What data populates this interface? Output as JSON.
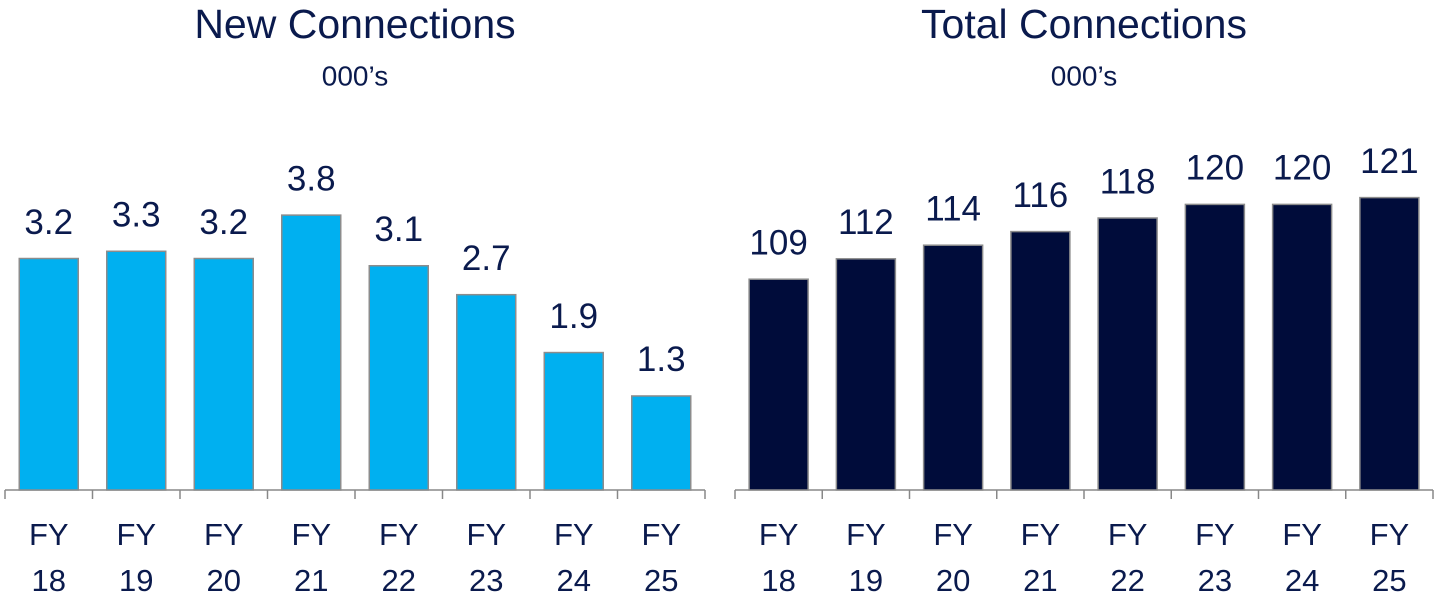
{
  "chart_data": [
    {
      "type": "bar",
      "title": "New Connections",
      "subtitle": "000’s",
      "categories": [
        "FY 18",
        "FY 19",
        "FY 20",
        "FY 21",
        "FY 22",
        "FY 23",
        "FY 24",
        "FY 25"
      ],
      "values": [
        3.2,
        3.3,
        3.2,
        3.8,
        3.1,
        2.7,
        1.9,
        1.3
      ],
      "color": "#00b0f0",
      "ylim": [
        0,
        4.7
      ]
    },
    {
      "type": "bar",
      "title": "Total Connections",
      "subtitle": "000’s",
      "categories": [
        "FY 18",
        "FY 19",
        "FY 20",
        "FY 21",
        "FY 22",
        "FY 23",
        "FY 24",
        "FY 25"
      ],
      "values": [
        109,
        112,
        114,
        116,
        118,
        120,
        120,
        121
      ],
      "color": "#000c3a",
      "ylim": [
        78,
        128
      ]
    }
  ]
}
